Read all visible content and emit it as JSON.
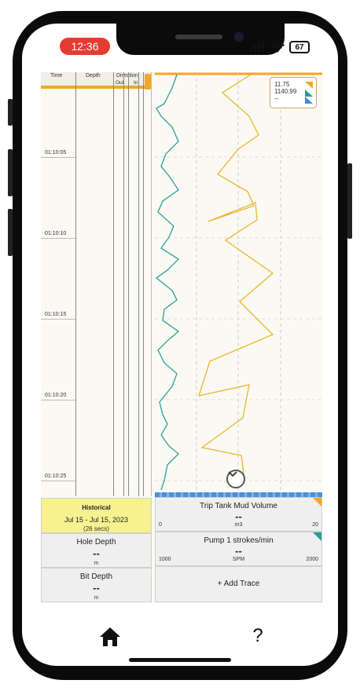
{
  "status_bar": {
    "time": "12:36",
    "battery": "67"
  },
  "timeline": {
    "headers": {
      "time": "Time",
      "depth": "Depth",
      "direction": "Direction",
      "out": "Out",
      "in": "In"
    },
    "times": [
      "01:10:05",
      "01:10:10",
      "01:10:15",
      "01:10:20",
      "01:10:25"
    ]
  },
  "legend": {
    "value1": "11.75",
    "value2": "1140.99",
    "value3": "--"
  },
  "historical": {
    "label": "Historical",
    "range": "Jul 15 - Jul 15, 2023",
    "duration": "(26 secs)"
  },
  "hole_depth": {
    "title": "Hole Depth",
    "value": "--",
    "unit": "m"
  },
  "bit_depth": {
    "title": "Bit Depth",
    "value": "--",
    "unit": "m"
  },
  "trace1": {
    "title": "Trip Tank Mud Volume",
    "value": "--",
    "min": "0",
    "unit": "m3",
    "max": "20",
    "color": "#f5a623"
  },
  "trace2": {
    "title": "Pump 1 strokes/min",
    "value": "--",
    "min": "1000",
    "unit": "SPM",
    "max": "2000",
    "color": "#2a9d8f"
  },
  "add_trace": {
    "label": "+ Add Trace"
  },
  "nav": {
    "help": "?"
  },
  "colors": {
    "orange": "#f5a623",
    "teal": "#3aa6a0",
    "yellow_line": "#e8b830"
  }
}
